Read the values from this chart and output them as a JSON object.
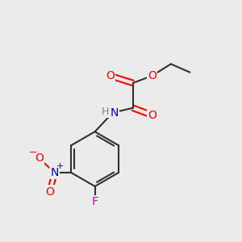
{
  "background_color": "#ebebeb",
  "atom_colors": {
    "C": "#202020",
    "O": "#ff0000",
    "N": "#0000cc",
    "F": "#cc00cc",
    "H": "#808080"
  },
  "bond_color": "#303030",
  "bond_width": 1.5,
  "figsize": [
    3.0,
    3.0
  ],
  "dpi": 100
}
